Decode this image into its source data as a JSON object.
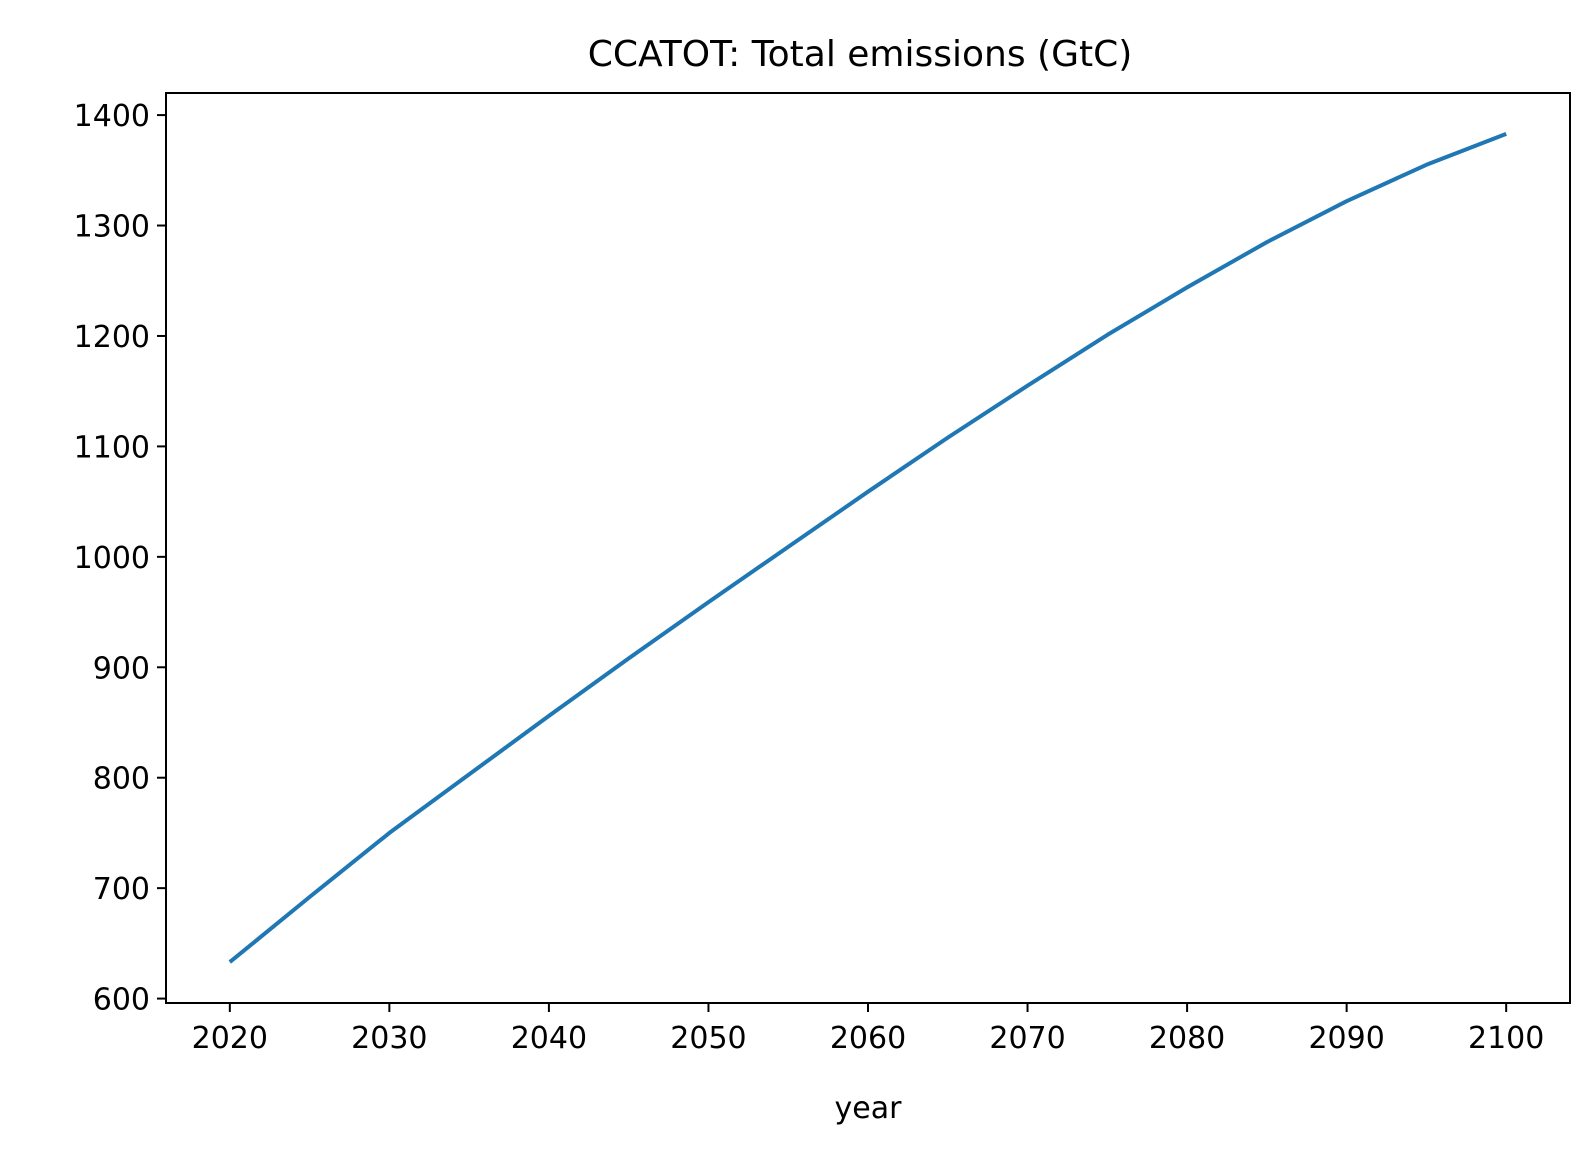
{
  "chart_data": {
    "type": "line",
    "title": "CCATOT: Total emissions (GtC)",
    "xlabel": "year",
    "ylabel": "",
    "xlim": [
      2016,
      2104
    ],
    "ylim": [
      596,
      1420
    ],
    "x_ticks": [
      2020,
      2030,
      2040,
      2050,
      2060,
      2070,
      2080,
      2090,
      2100
    ],
    "y_ticks": [
      600,
      700,
      800,
      900,
      1000,
      1100,
      1200,
      1300,
      1400
    ],
    "grid": false,
    "legend": "none",
    "series": [
      {
        "color": "#1f77b4",
        "x": [
          2020,
          2025,
          2030,
          2035,
          2040,
          2045,
          2050,
          2055,
          2060,
          2065,
          2070,
          2075,
          2080,
          2085,
          2090,
          2095,
          2100
        ],
        "y": [
          633,
          692,
          750,
          803,
          856,
          908,
          959,
          1009,
          1059,
          1108,
          1155,
          1201,
          1244,
          1285,
          1322,
          1355,
          1383
        ]
      }
    ]
  }
}
